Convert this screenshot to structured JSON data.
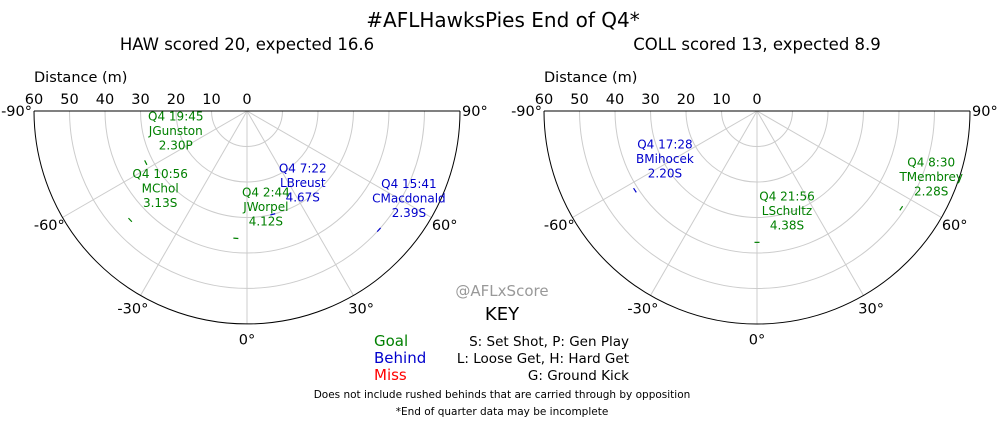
{
  "title": "#AFLHawksPies End of Q4*",
  "watermark": "@AFLxScore",
  "colors": {
    "goal": "#008000",
    "behind": "#0000cc",
    "miss": "#ff0000",
    "grid": "#cccccc",
    "frame": "#000000"
  },
  "key": {
    "title": "KEY",
    "outcomes": [
      {
        "label": "Goal",
        "color": "#008000"
      },
      {
        "label": "Behind",
        "color": "#0000cc"
      },
      {
        "label": "Miss",
        "color": "#ff0000"
      }
    ],
    "codes": [
      "S: Set Shot, P: Gen Play",
      "L: Loose Get, H: Hard Get",
      "G: Ground Kick"
    ],
    "notes": [
      "Does not include rushed behinds that are carried through by opposition",
      "*End of quarter data may be incomplete"
    ]
  },
  "chart_data": [
    {
      "type": "scatter",
      "coordinate_system": "polar",
      "subtitle": "HAW scored 20, expected 16.6",
      "radial_label": "Distance (m)",
      "radial_ticks": [
        0,
        10,
        20,
        30,
        40,
        50,
        60
      ],
      "radial_range": [
        0,
        60
      ],
      "angle_ticks": [
        "-90°",
        "-60°",
        "-30°",
        "0°",
        "30°",
        "60°",
        "90°"
      ],
      "angle_range_deg": [
        -90,
        90
      ],
      "grid": true,
      "shots": [
        {
          "time": "Q4 19:45",
          "player": "JGunston",
          "xscore": "2.30P",
          "result": "Goal",
          "angle_deg": -63,
          "distance_m": 32
        },
        {
          "time": "Q4 10:56",
          "player": "MChol",
          "xscore": "3.13S",
          "result": "Goal",
          "angle_deg": -47,
          "distance_m": 45
        },
        {
          "time": "Q4 7:22",
          "player": "LBreust",
          "xscore": "4.67S",
          "result": "Behind",
          "angle_deg": 14,
          "distance_m": 30
        },
        {
          "time": "Q4 15:41",
          "player": "CMacdonald",
          "xscore": "2.39S",
          "result": "Behind",
          "angle_deg": 48,
          "distance_m": 50
        },
        {
          "time": "Q4 2:44",
          "player": "JWorpel",
          "xscore": "4.12S",
          "result": "Goal",
          "angle_deg": -5,
          "distance_m": 36
        }
      ]
    },
    {
      "type": "scatter",
      "coordinate_system": "polar",
      "subtitle": "COLL scored 13, expected 8.9",
      "radial_label": "Distance (m)",
      "radial_ticks": [
        0,
        10,
        20,
        30,
        40,
        50,
        60
      ],
      "radial_range": [
        0,
        60
      ],
      "angle_ticks": [
        "-90°",
        "-60°",
        "-30°",
        "0°",
        "30°",
        "60°",
        "90°"
      ],
      "angle_range_deg": [
        -90,
        90
      ],
      "grid": true,
      "shots": [
        {
          "time": "Q4 17:28",
          "player": "BMihocek",
          "xscore": "2.20S",
          "result": "Behind",
          "angle_deg": -57,
          "distance_m": 41
        },
        {
          "time": "Q4 21:56",
          "player": "LSchultz",
          "xscore": "4.38S",
          "result": "Goal",
          "angle_deg": 0,
          "distance_m": 37
        },
        {
          "time": "Q4 8:30",
          "player": "TMembrey",
          "xscore": "2.28S",
          "result": "Goal",
          "angle_deg": 56,
          "distance_m": 49
        }
      ]
    }
  ]
}
